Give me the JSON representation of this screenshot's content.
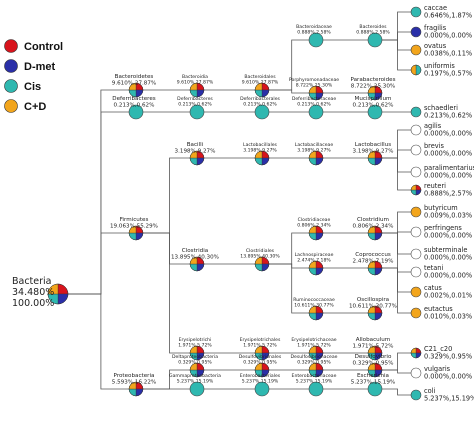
{
  "legend": [
    {
      "label": "Control",
      "color": "#d8141c"
    },
    {
      "label": "D-met",
      "color": "#2a2fa8"
    },
    {
      "label": "Cis",
      "color": "#2fb8b0"
    },
    {
      "label": "C+D",
      "color": "#f2a51c"
    }
  ],
  "root": {
    "name": "Bacteria",
    "l2": "34.480%",
    "l3": "100.00%"
  },
  "nodes": [
    {
      "id": "bacteroidetes",
      "name": "Bacteroidetes",
      "stats": "9.610%,27.87%",
      "pie": [
        1,
        1,
        1,
        1
      ]
    },
    {
      "id": "bacteroidia",
      "name": "Bacteroidia",
      "stats": "9.610%,27.87%",
      "pie": [
        1,
        1,
        1,
        1
      ]
    },
    {
      "id": "bacteroidales",
      "name": "Bacteroidales",
      "stats": "9.610%,27.87%",
      "pie": [
        1,
        1,
        1,
        1
      ]
    },
    {
      "id": "bacteroidaceae",
      "name": "Bacteroidaceae",
      "stats": "0.888%,2.58%",
      "pie": [
        0,
        0,
        1,
        0
      ]
    },
    {
      "id": "bacteroides",
      "name": "Bacteroides",
      "stats": "0.888%,2.58%",
      "pie": [
        0,
        0,
        1,
        0
      ]
    },
    {
      "id": "caccae",
      "name": "caccae",
      "stats": "0.646%,1.87%",
      "pie": [
        0,
        0,
        1,
        0
      ]
    },
    {
      "id": "fragilis",
      "name": "fragilis",
      "stats": "0.000%,0.00%",
      "pie": [
        0,
        1,
        0,
        0
      ]
    },
    {
      "id": "ovatus",
      "name": "ovatus",
      "stats": "0.038%,0.11%",
      "pie": [
        0,
        0,
        0,
        1
      ]
    },
    {
      "id": "uniformis",
      "name": "uniformis",
      "stats": "0.197%,0.57%",
      "pie": [
        0,
        0,
        1,
        1
      ]
    },
    {
      "id": "porphyromonadaceae",
      "name": "Porphyromonadaceae",
      "stats": "8.722%,25.30%",
      "pie": [
        1,
        1,
        1,
        1
      ]
    },
    {
      "id": "parabacteroides",
      "name": "Parabacteroides",
      "stats": "8.722%,25.30%",
      "pie": [
        1,
        1,
        1,
        1
      ]
    },
    {
      "id": "deferribacteres",
      "name": "Deferribacteres",
      "stats": "0.213%,0.62%",
      "pie": [
        0,
        0,
        1,
        0
      ]
    },
    {
      "id": "deferribacteres2",
      "name": "Deferribacteres",
      "stats": "0.213%,0.62%",
      "pie": [
        0,
        0,
        1,
        0
      ]
    },
    {
      "id": "deferribacterales",
      "name": "Deferribacterales",
      "stats": "0.213%,0.62%",
      "pie": [
        0,
        0,
        1,
        0
      ]
    },
    {
      "id": "deferribacteraceae",
      "name": "Deferribacteraceae",
      "stats": "0.213%,0.62%",
      "pie": [
        0,
        0,
        1,
        0
      ]
    },
    {
      "id": "mucispirillum",
      "name": "Mucispirillum",
      "stats": "0.213%,0.62%",
      "pie": [
        0,
        0,
        1,
        0
      ]
    },
    {
      "id": "schaedleri",
      "name": "schaedleri",
      "stats": "0.213%,0.62%",
      "pie": [
        0,
        0,
        1,
        0
      ]
    },
    {
      "id": "firmicutes",
      "name": "Firmicutes",
      "stats": "19.063%,55.29%",
      "pie": [
        1,
        1,
        1,
        1
      ]
    },
    {
      "id": "bacilli",
      "name": "Bacilli",
      "stats": "3.198%,9.27%",
      "pie": [
        1,
        1,
        1,
        1
      ]
    },
    {
      "id": "lactobacillales",
      "name": "Lactobacillales",
      "stats": "3.198%,9.27%",
      "pie": [
        1,
        1,
        1,
        1
      ]
    },
    {
      "id": "lactobacillaceae",
      "name": "Lactobacillaceae",
      "stats": "3.198%,9.27%",
      "pie": [
        1,
        1,
        1,
        1
      ]
    },
    {
      "id": "lactobacillus",
      "name": "Lactobacillus",
      "stats": "3.198%,9.27%",
      "pie": [
        1,
        1,
        1,
        1
      ]
    },
    {
      "id": "agilis",
      "name": "agilis",
      "stats": "0.000%,0.00%",
      "pie": [
        0,
        0,
        0,
        0
      ]
    },
    {
      "id": "brevis",
      "name": "brevis",
      "stats": "0.000%,0.00%",
      "pie": [
        0,
        0,
        0,
        0
      ]
    },
    {
      "id": "paralimentarius",
      "name": "paralimentarius",
      "stats": "0.000%,0.00%",
      "pie": [
        0,
        0,
        0,
        0
      ]
    },
    {
      "id": "reuteri",
      "name": "reuteri",
      "stats": "0.888%,2.57%",
      "pie": [
        1,
        1,
        1,
        1
      ]
    },
    {
      "id": "clostridia",
      "name": "Clostridia",
      "stats": "13.895%,40.30%",
      "pie": [
        1,
        1,
        1,
        1
      ]
    },
    {
      "id": "clostridiales",
      "name": "Clostridiales",
      "stats": "13.895%,40.30%",
      "pie": [
        1,
        1,
        1,
        1
      ]
    },
    {
      "id": "clostridiaceae",
      "name": "Clostridiaceae",
      "stats": "0.806%,2.34%",
      "pie": [
        1,
        1,
        1,
        1
      ]
    },
    {
      "id": "clostridium",
      "name": "Clostridium",
      "stats": "0.806%,2.34%",
      "pie": [
        1,
        1,
        1,
        1
      ]
    },
    {
      "id": "butyricum",
      "name": "butyricum",
      "stats": "0.009%,0.03%",
      "pie": [
        0,
        0,
        0,
        1
      ]
    },
    {
      "id": "perfringens",
      "name": "perfringens",
      "stats": "0.000%,0.00%",
      "pie": [
        0,
        0,
        0,
        0
      ]
    },
    {
      "id": "subterminale",
      "name": "subterminale",
      "stats": "0.000%,0.00%",
      "pie": [
        0,
        0,
        0,
        0
      ]
    },
    {
      "id": "tetani",
      "name": "tetani",
      "stats": "0.000%,0.00%",
      "pie": [
        0,
        0,
        0,
        0
      ]
    },
    {
      "id": "lachnospiraceae",
      "name": "Lachnospiraceae",
      "stats": "2.474%,7.18%",
      "pie": [
        1,
        1,
        1,
        1
      ]
    },
    {
      "id": "coprococcus",
      "name": "Coprococcus",
      "stats": "2.478%,7.19%",
      "pie": [
        1,
        1,
        1,
        1
      ]
    },
    {
      "id": "catus",
      "name": "catus",
      "stats": "0.002%,0.01%",
      "pie": [
        0,
        0,
        0,
        1
      ]
    },
    {
      "id": "eutactus",
      "name": "eutactus",
      "stats": "0.010%,0.03%",
      "pie": [
        0,
        0,
        0,
        1
      ]
    },
    {
      "id": "ruminococcaceae",
      "name": "Ruminococcaceae",
      "stats": "10.611%,30.77%",
      "pie": [
        1,
        1,
        1,
        1
      ]
    },
    {
      "id": "oscillospira",
      "name": "Oscillospira",
      "stats": "10.611%,30.77%",
      "pie": [
        1,
        1,
        1,
        1
      ]
    },
    {
      "id": "erysipelotrichi",
      "name": "Erysipelotrichi",
      "stats": "1.971%,5.72%",
      "pie": [
        1,
        1,
        1,
        1
      ]
    },
    {
      "id": "erysipelotrichales",
      "name": "Erysipelotrichales",
      "stats": "1.971%,5.72%",
      "pie": [
        1,
        1,
        1,
        1
      ]
    },
    {
      "id": "erysipelotrichaceae",
      "name": "Erysipelotrichaceae",
      "stats": "1.971%,5.72%",
      "pie": [
        1,
        1,
        1,
        1
      ]
    },
    {
      "id": "allobaculum",
      "name": "Allobaculum",
      "stats": "1.971%,5.72%",
      "pie": [
        1,
        1,
        1,
        1
      ]
    },
    {
      "id": "proteobacteria",
      "name": "Proteobacteria",
      "stats": "5.593%,16.22%",
      "pie": [
        1,
        1,
        1,
        1
      ]
    },
    {
      "id": "deltaproteobacteria",
      "name": "Deltaproteobacteria",
      "stats": "0.329%,0.95%",
      "pie": [
        1,
        1,
        1,
        1
      ]
    },
    {
      "id": "desulfovibrionales",
      "name": "Desulfovibrionales",
      "stats": "0.329%,0.95%",
      "pie": [
        1,
        1,
        1,
        1
      ]
    },
    {
      "id": "desulfovibrionaceae",
      "name": "Desulfovibrionaceae",
      "stats": "0.329%,0.95%",
      "pie": [
        1,
        1,
        1,
        1
      ]
    },
    {
      "id": "desulfovibrio",
      "name": "Desulfovibrio",
      "stats": "0.329%,0.95%",
      "pie": [
        1,
        1,
        1,
        1
      ]
    },
    {
      "id": "c21_c20",
      "name": "C21_c20",
      "stats": "0.329%,0.95%",
      "pie": [
        1,
        1,
        1,
        1
      ]
    },
    {
      "id": "vulgaris",
      "name": "vulgaris",
      "stats": "0.000%,0.00%",
      "pie": [
        0,
        0,
        0,
        0
      ]
    },
    {
      "id": "gammaproteobacteria",
      "name": "Gammaproteobacteria",
      "stats": "5.237%,15.19%",
      "pie": [
        0,
        0,
        1,
        0
      ]
    },
    {
      "id": "enterobacteriales",
      "name": "Enterobacteriales",
      "stats": "5.237%,15.19%",
      "pie": [
        0,
        0,
        1,
        0
      ]
    },
    {
      "id": "enterobacteriaceae",
      "name": "Enterobacteriaceae",
      "stats": "5.237%,15.19%",
      "pie": [
        0,
        0,
        1,
        0
      ]
    },
    {
      "id": "escherichia",
      "name": "Escherichia",
      "stats": "5.237%,15.19%",
      "pie": [
        0,
        0,
        1,
        0
      ]
    },
    {
      "id": "coli",
      "name": "coli",
      "stats": "5.237%,15.19%",
      "pie": [
        0,
        0,
        1,
        0
      ]
    }
  ],
  "edges": [
    [
      "root",
      "bacteroidetes"
    ],
    [
      "bacteroidetes",
      "bacteroidia"
    ],
    [
      "bacteroidia",
      "bacteroidales"
    ],
    [
      "bacteroidales",
      "bacteroidaceae"
    ],
    [
      "bacteroidaceae",
      "bacteroides"
    ],
    [
      "bacteroides",
      "caccae"
    ],
    [
      "bacteroides",
      "fragilis"
    ],
    [
      "bacteroides",
      "ovatus"
    ],
    [
      "bacteroides",
      "uniformis"
    ],
    [
      "bacteroidales",
      "porphyromonadaceae"
    ],
    [
      "porphyromonadaceae",
      "parabacteroides"
    ],
    [
      "root",
      "deferribacteres"
    ],
    [
      "deferribacteres",
      "deferribacteres2"
    ],
    [
      "deferribacteres2",
      "deferribacterales"
    ],
    [
      "deferribacterales",
      "deferribacteraceae"
    ],
    [
      "deferribacteraceae",
      "mucispirillum"
    ],
    [
      "mucispirillum",
      "schaedleri"
    ],
    [
      "root",
      "firmicutes"
    ],
    [
      "firmicutes",
      "bacilli"
    ],
    [
      "bacilli",
      "lactobacillales"
    ],
    [
      "lactobacillales",
      "lactobacillaceae"
    ],
    [
      "lactobacillaceae",
      "lactobacillus"
    ],
    [
      "lactobacillus",
      "agilis"
    ],
    [
      "lactobacillus",
      "brevis"
    ],
    [
      "lactobacillus",
      "paralimentarius"
    ],
    [
      "lactobacillus",
      "reuteri"
    ],
    [
      "firmicutes",
      "clostridia"
    ],
    [
      "clostridia",
      "clostridiales"
    ],
    [
      "clostridiales",
      "clostridiaceae"
    ],
    [
      "clostridiaceae",
      "clostridium"
    ],
    [
      "clostridium",
      "butyricum"
    ],
    [
      "clostridium",
      "perfringens"
    ],
    [
      "clostridium",
      "subterminale"
    ],
    [
      "clostridium",
      "tetani"
    ],
    [
      "clostridiales",
      "lachnospiraceae"
    ],
    [
      "lachnospiraceae",
      "coprococcus"
    ],
    [
      "coprococcus",
      "catus"
    ],
    [
      "coprococcus",
      "eutactus"
    ],
    [
      "clostridiales",
      "ruminococcaceae"
    ],
    [
      "ruminococcaceae",
      "oscillospira"
    ],
    [
      "firmicutes",
      "erysipelotrichi"
    ],
    [
      "erysipelotrichi",
      "erysipelotrichales"
    ],
    [
      "erysipelotrichales",
      "erysipelotrichaceae"
    ],
    [
      "erysipelotrichaceae",
      "allobaculum"
    ],
    [
      "root",
      "proteobacteria"
    ],
    [
      "proteobacteria",
      "deltaproteobacteria"
    ],
    [
      "deltaproteobacteria",
      "desulfovibrionales"
    ],
    [
      "desulfovibrionales",
      "desulfovibrionaceae"
    ],
    [
      "desulfovibrionaceae",
      "desulfovibrio"
    ],
    [
      "desulfovibrio",
      "c21_c20"
    ],
    [
      "desulfovibrio",
      "vulgaris"
    ],
    [
      "proteobacteria",
      "gammaproteobacteria"
    ],
    [
      "gammaproteobacteria",
      "enterobacteriales"
    ],
    [
      "enterobacteriales",
      "enterobacteriaceae"
    ],
    [
      "enterobacteriaceae",
      "escherichia"
    ],
    [
      "escherichia",
      "coli"
    ]
  ]
}
